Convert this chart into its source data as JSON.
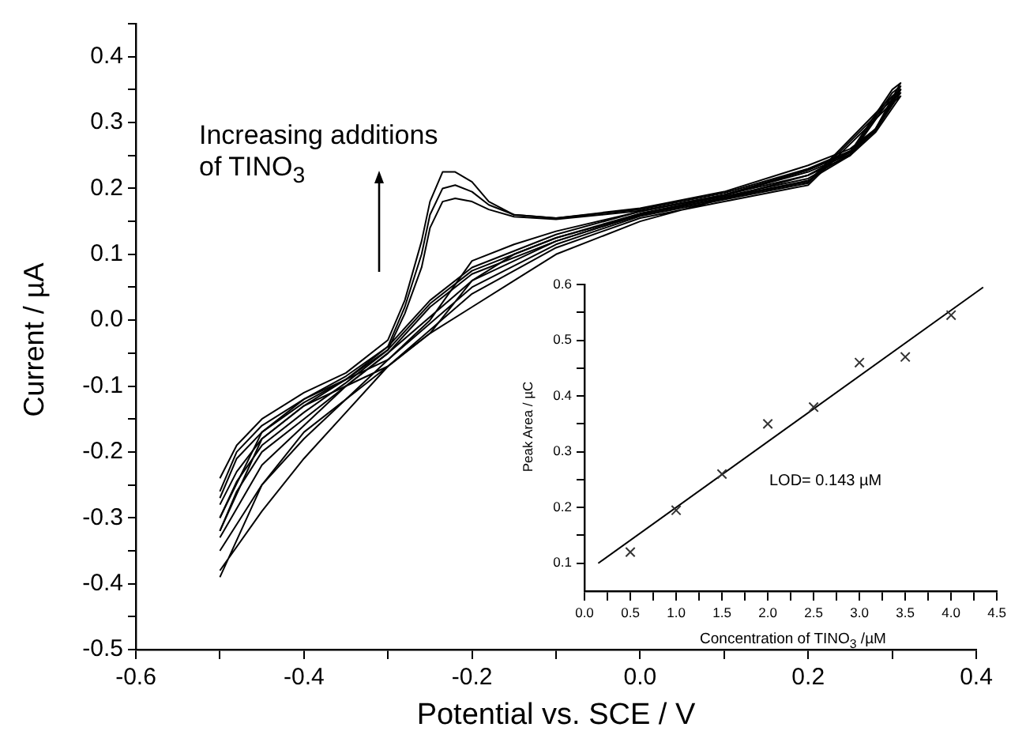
{
  "chart_data": [
    {
      "type": "line",
      "xlabel": "Potential vs. SCE / V",
      "ylabel": "Current / µA",
      "annotations": [
        "Increasing additions of TINO$_{3}$"
      ],
      "legend": false,
      "marker": "none",
      "line_style": "solid",
      "xlim": [
        -0.6,
        0.4
      ],
      "ylim": [
        -0.5,
        0.45
      ],
      "xticks": [
        -0.6,
        {
          "value": -0.5,
          "label": null
        },
        -0.4,
        {
          "value": -0.3,
          "label": null
        },
        -0.2,
        {
          "value": -0.1,
          "label": null
        },
        {
          "value": 0,
          "label": "0.0"
        },
        {
          "value": 0.1,
          "label": null
        },
        0.2,
        {
          "value": 0.3,
          "label": null
        },
        0.4
      ],
      "yticks": [
        -0.5,
        {
          "value": -0.45,
          "label": null
        },
        -0.4,
        {
          "value": -0.35,
          "label": null
        },
        -0.3,
        {
          "value": -0.25,
          "label": null
        },
        -0.2,
        {
          "value": -0.15,
          "label": null
        },
        -0.1,
        {
          "value": -0.05,
          "label": null
        },
        {
          "value": 0,
          "label": "0.0"
        },
        {
          "value": 0.05,
          "label": null
        },
        0.1,
        {
          "value": 0.15,
          "label": null
        },
        0.2,
        {
          "value": 0.25,
          "label": null
        },
        0.3,
        {
          "value": 0.35,
          "label": null
        },
        0.4,
        {
          "value": 0.45,
          "label": null
        }
      ],
      "series": [
        {
          "color": "#000000",
          "x": [
            -0.5,
            -0.48,
            -0.45,
            -0.4,
            -0.35,
            -0.3,
            -0.28,
            -0.26,
            -0.25,
            -0.235,
            -0.22,
            -0.2,
            -0.18,
            -0.15,
            -0.1,
            0,
            0.1,
            0.2,
            0.25,
            0.28,
            0.31,
            0.3,
            0.25,
            0.2,
            0.1,
            0,
            -0.1,
            -0.2,
            -0.25,
            -0.3,
            -0.35,
            -0.4,
            -0.45,
            -0.48,
            -0.5
          ],
          "values": [
            -0.24,
            -0.19,
            -0.15,
            -0.11,
            -0.08,
            -0.03,
            0.03,
            0.12,
            0.18,
            0.225,
            0.225,
            0.21,
            0.18,
            0.16,
            0.155,
            0.17,
            0.195,
            0.235,
            0.26,
            0.29,
            0.36,
            0.35,
            0.255,
            0.22,
            0.19,
            0.165,
            0.13,
            0.08,
            0.03,
            -0.04,
            -0.09,
            -0.13,
            -0.18,
            -0.23,
            -0.28
          ]
        },
        {
          "color": "#000000",
          "x": [
            -0.5,
            -0.48,
            -0.45,
            -0.4,
            -0.35,
            -0.3,
            -0.28,
            -0.26,
            -0.25,
            -0.235,
            -0.22,
            -0.2,
            -0.18,
            -0.15,
            -0.1,
            0,
            0.1,
            0.2,
            0.25,
            0.28,
            0.31,
            0.3,
            0.25,
            0.2,
            0.1,
            0,
            -0.1,
            -0.2,
            -0.25,
            -0.3,
            -0.35,
            -0.4,
            -0.45,
            -0.48,
            -0.5
          ],
          "values": [
            -0.26,
            -0.2,
            -0.16,
            -0.12,
            -0.085,
            -0.04,
            0.02,
            0.1,
            0.16,
            0.2,
            0.205,
            0.195,
            0.175,
            0.16,
            0.155,
            0.168,
            0.193,
            0.23,
            0.257,
            0.29,
            0.355,
            0.345,
            0.252,
            0.215,
            0.188,
            0.162,
            0.125,
            0.075,
            0.025,
            -0.045,
            -0.095,
            -0.14,
            -0.19,
            -0.245,
            -0.3
          ]
        },
        {
          "color": "#000000",
          "x": [
            -0.5,
            -0.48,
            -0.45,
            -0.4,
            -0.35,
            -0.3,
            -0.28,
            -0.26,
            -0.25,
            -0.235,
            -0.22,
            -0.2,
            -0.18,
            -0.15,
            -0.1,
            0,
            0.1,
            0.2,
            0.25,
            0.28,
            0.31,
            0.3,
            0.25,
            0.2,
            0.1,
            0,
            -0.1,
            -0.2,
            -0.25,
            -0.3,
            -0.35,
            -0.4,
            -0.45,
            -0.48,
            -0.5
          ],
          "values": [
            -0.27,
            -0.21,
            -0.17,
            -0.125,
            -0.09,
            -0.045,
            0.01,
            0.08,
            0.14,
            0.18,
            0.185,
            0.18,
            0.168,
            0.157,
            0.153,
            0.166,
            0.19,
            0.228,
            0.255,
            0.288,
            0.35,
            0.34,
            0.25,
            0.212,
            0.186,
            0.16,
            0.12,
            0.07,
            0.02,
            -0.05,
            -0.1,
            -0.15,
            -0.2,
            -0.26,
            -0.32
          ]
        },
        {
          "color": "#000000",
          "x": [
            -0.5,
            -0.45,
            -0.4,
            -0.35,
            -0.3,
            -0.25,
            -0.2,
            -0.15,
            -0.1,
            0,
            0.1,
            0.2,
            0.25,
            0.28,
            0.31,
            0.3,
            0.2,
            0.1,
            0,
            -0.1,
            -0.2,
            -0.3,
            -0.35,
            -0.4,
            -0.45,
            -0.5
          ],
          "values": [
            -0.3,
            -0.17,
            -0.12,
            -0.09,
            -0.06,
            0.0,
            0.09,
            0.115,
            0.135,
            0.165,
            0.19,
            0.228,
            0.255,
            0.29,
            0.35,
            0.34,
            0.21,
            0.185,
            0.16,
            0.12,
            0.06,
            -0.05,
            -0.1,
            -0.16,
            -0.22,
            -0.33
          ]
        },
        {
          "color": "#000000",
          "x": [
            -0.5,
            -0.45,
            -0.4,
            -0.35,
            -0.3,
            -0.25,
            -0.2,
            -0.15,
            -0.1,
            0,
            0.1,
            0.2,
            0.25,
            0.28,
            0.31,
            0.3,
            0.2,
            0.1,
            0,
            -0.1,
            -0.2,
            -0.3,
            -0.35,
            -0.4,
            -0.45,
            -0.5
          ],
          "values": [
            -0.32,
            -0.18,
            -0.13,
            -0.1,
            -0.07,
            -0.02,
            0.06,
            0.1,
            0.125,
            0.16,
            0.19,
            0.225,
            0.252,
            0.288,
            0.345,
            0.335,
            0.208,
            0.183,
            0.158,
            0.115,
            0.05,
            -0.06,
            -0.12,
            -0.18,
            -0.25,
            -0.35
          ]
        },
        {
          "color": "#000000",
          "x": [
            -0.5,
            -0.45,
            -0.4,
            -0.35,
            -0.3,
            -0.25,
            -0.2,
            -0.15,
            -0.1,
            0,
            0.1,
            0.2,
            0.25,
            0.28,
            0.31,
            0.3,
            0.2,
            0.1,
            0,
            -0.1,
            -0.2,
            -0.3,
            -0.35,
            -0.4,
            -0.45,
            -0.5
          ],
          "values": [
            -0.39,
            -0.25,
            -0.17,
            -0.12,
            -0.07,
            -0.02,
            0.02,
            0.06,
            0.1,
            0.15,
            0.185,
            0.22,
            0.25,
            0.285,
            0.34,
            0.33,
            0.205,
            0.18,
            0.155,
            0.11,
            0.04,
            -0.07,
            -0.14,
            -0.21,
            -0.29,
            -0.38
          ]
        }
      ]
    },
    {
      "type": "scatter",
      "xlabel": "Concentration of TINO$_{3}$ /µM",
      "ylabel": "Peak Area  / µC",
      "annotations": [
        "LOD= 0.143  µM"
      ],
      "legend": false,
      "marker": "cross",
      "xlim": [
        0,
        4.5
      ],
      "ylim": [
        0.05,
        0.6
      ],
      "xticks": [
        {
          "value": 0,
          "label": "0.0"
        },
        {
          "value": 0.25,
          "label": null
        },
        0.5,
        {
          "value": 0.75,
          "label": null
        },
        {
          "value": 1,
          "label": "1.0"
        },
        {
          "value": 1.25,
          "label": null
        },
        1.5,
        {
          "value": 1.75,
          "label": null
        },
        {
          "value": 2,
          "label": "2.0"
        },
        {
          "value": 2.25,
          "label": null
        },
        2.5,
        {
          "value": 2.75,
          "label": null
        },
        {
          "value": 3,
          "label": "3.0"
        },
        {
          "value": 3.25,
          "label": null
        },
        3.5,
        {
          "value": 3.75,
          "label": null
        },
        {
          "value": 4,
          "label": "4.0"
        },
        {
          "value": 4.25,
          "label": null
        },
        4.5
      ],
      "yticks": [
        0.1,
        {
          "value": 0.15,
          "label": null
        },
        0.2,
        {
          "value": 0.25,
          "label": null
        },
        0.3,
        {
          "value": 0.35,
          "label": null
        },
        0.4,
        {
          "value": 0.45,
          "label": null
        },
        0.5,
        {
          "value": 0.55,
          "label": null
        },
        0.6
      ],
      "series": [
        {
          "color": "#333333",
          "x": [
            0.5,
            1,
            1.5,
            2,
            2.5,
            3,
            3.5,
            4
          ],
          "values": [
            0.12,
            0.195,
            0.26,
            0.35,
            0.38,
            0.46,
            0.47,
            0.545
          ]
        },
        {
          "type": "line",
          "marker": "none",
          "color": "#000000",
          "x": [
            0.15,
            4.35
          ],
          "values": [
            0.1,
            0.595
          ]
        }
      ]
    }
  ]
}
